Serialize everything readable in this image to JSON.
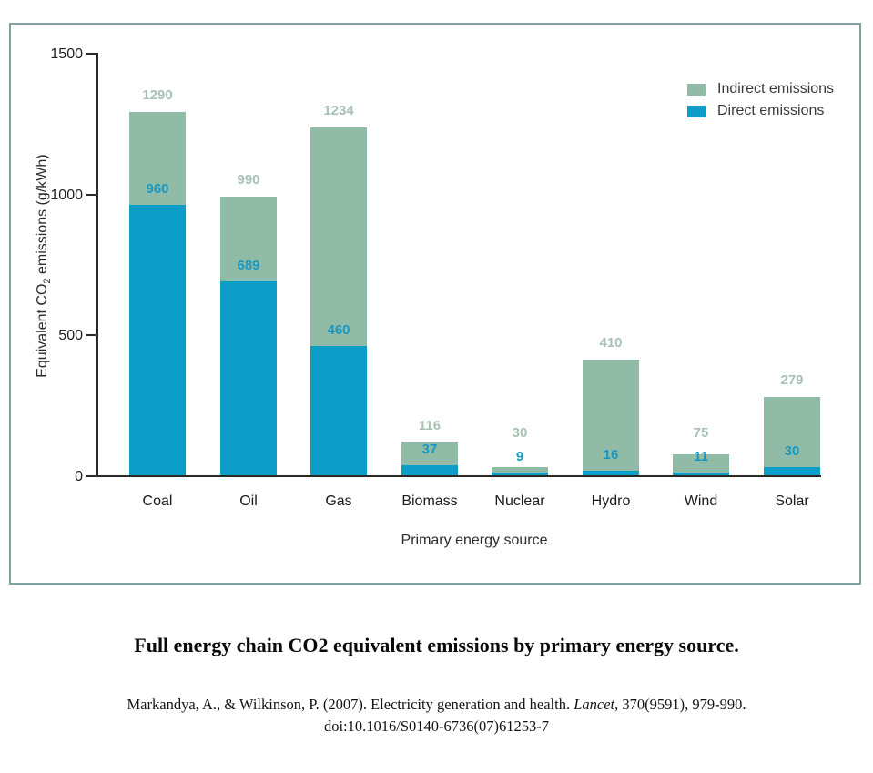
{
  "figure": {
    "caption": "Full energy chain CO2 equivalent emissions by primary energy source.",
    "citation": {
      "line1_pre": "Markandya, A., & Wilkinson, P. (2007). Electricity generation and health. ",
      "line1_italic": "Lancet",
      "line1_post": ", 370(9591), 979-990.",
      "line2": "doi:10.1016/S0140-6736(07)61253-7"
    }
  },
  "chart_data": {
    "type": "bar",
    "stacked": true,
    "categories": [
      "Coal",
      "Oil",
      "Gas",
      "Biomass",
      "Nuclear",
      "Hydro",
      "Wind",
      "Solar"
    ],
    "series": [
      {
        "name": "Direct emissions",
        "color": "#0d9ec7",
        "values": [
          960,
          689,
          460,
          37,
          9,
          16,
          11,
          30
        ]
      },
      {
        "name": "Indirect emissions",
        "color": "#90bca7",
        "values": [
          330,
          301,
          774,
          79,
          21,
          394,
          64,
          249
        ]
      }
    ],
    "totals": [
      1290,
      990,
      1234,
      116,
      30,
      410,
      75,
      279
    ],
    "direct_labels": [
      960,
      689,
      460,
      37,
      9,
      16,
      11,
      30
    ],
    "xlabel": "Primary energy source",
    "ylabel": "Equivalent CO2 emissions (g/kWh)",
    "ylabel_parts": {
      "pre": "Equivalent CO",
      "sub": "2",
      "post": " emissions (g/kWh)"
    },
    "ylim": [
      0,
      1500
    ],
    "yticks": [
      0,
      500,
      1000,
      1500
    ],
    "grid": false,
    "legend_position": "top-right",
    "legend": [
      {
        "label": "Indirect emissions",
        "color": "#90bca7"
      },
      {
        "label": "Direct emissions",
        "color": "#0d9ec7"
      }
    ],
    "colors": {
      "direct_bar": "#0d9ec7",
      "indirect_bar": "#90bca7",
      "total_label": "#a7c2b3",
      "direct_label": "#1897c1",
      "axis": "#2b2926",
      "frame_border": "#7da49e"
    }
  }
}
